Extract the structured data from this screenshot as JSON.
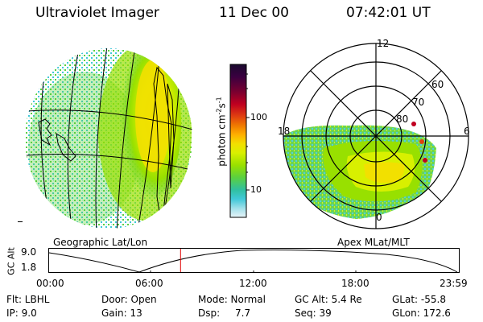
{
  "header": {
    "instrument": "Ultraviolet Imager",
    "date": "11 Dec 00",
    "time": "07:42:01 UT"
  },
  "panels": {
    "left_label": "Geographic Lat/Lon",
    "right_label": "Apex MLat/MLT"
  },
  "colorbar": {
    "unit_label": "photon cm",
    "unit_sup1": "-2",
    "unit_mid": "s",
    "unit_sup2": "-1",
    "ticks": [
      "100",
      "10"
    ],
    "scale": "log",
    "colors": [
      "#1a0a2e",
      "#3a0040",
      "#7a0030",
      "#c00020",
      "#e04010",
      "#f07a00",
      "#ffb000",
      "#f2e000",
      "#d8f000",
      "#98e000",
      "#5ad040",
      "#30c0a0",
      "#40c8d8",
      "#a0e0ea",
      "#e8f4f8"
    ]
  },
  "polar": {
    "mlt_labels": [
      "12",
      "18",
      "6",
      "0"
    ],
    "mlat_labels": [
      "60",
      "70",
      "80"
    ]
  },
  "altitude_plot": {
    "ylabel": "GC Alt",
    "yticks": [
      "9.0",
      "1.8"
    ],
    "xticks": [
      "00:00",
      "06:00",
      "12:00",
      "18:00",
      "23:59"
    ],
    "current_time_hours": 7.7
  },
  "info": {
    "row1": {
      "flt": "Flt: LBHL",
      "door": "Door: Open",
      "mode": "Mode: Normal",
      "gcalt": "GC Alt: 5.4 Re",
      "glat": "GLat: -55.8"
    },
    "row2": {
      "ip": "IP: 9.0",
      "gain": "Gain: 13",
      "dsp_label": "Dsp:",
      "dsp_value": "7.7",
      "seq": "Seq: 39",
      "glon": "GLon: 172.6"
    }
  },
  "accent_colors": {
    "aurora_yellow": "#f2e000",
    "aurora_green": "#5ad040",
    "time_marker": "#e00000"
  }
}
